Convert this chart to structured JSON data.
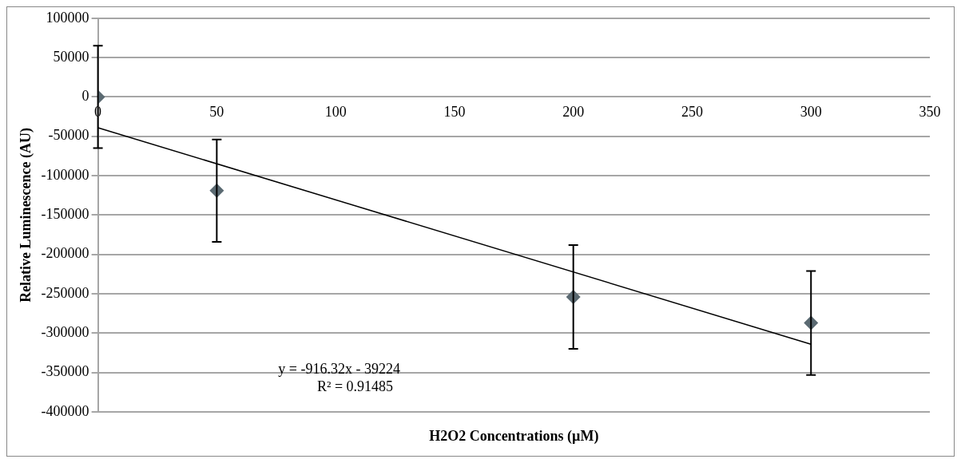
{
  "chart_data": {
    "type": "scatter",
    "xlabel": "H2O2 Concentrations (µM)",
    "ylabel": "Relative Luminescence (AU)",
    "series": [
      {
        "color": "#5b6a72",
        "x": [
          0,
          50,
          200,
          300
        ],
        "values": [
          0,
          -119000,
          -254000,
          -287000
        ],
        "errors": [
          65000,
          65000,
          66000,
          66000
        ],
        "marker": "diamond"
      },
      {
        "type": "line",
        "color": "#000000",
        "x": [
          0,
          300
        ],
        "values": [
          -39000,
          -314000
        ],
        "marker": "none"
      }
    ],
    "xlim": [
      0,
      350
    ],
    "xticks": [
      0,
      50,
      100,
      150,
      200,
      250,
      300,
      350
    ],
    "ylim": [
      -400000,
      100000
    ],
    "yticks": [
      -400000,
      -350000,
      -300000,
      -250000,
      -200000,
      -150000,
      -100000,
      -50000,
      0,
      50000,
      100000
    ],
    "grid": "y",
    "legend": false,
    "annotations": [
      "y = -916.32x - 39224",
      "R² = 0.91485"
    ]
  }
}
